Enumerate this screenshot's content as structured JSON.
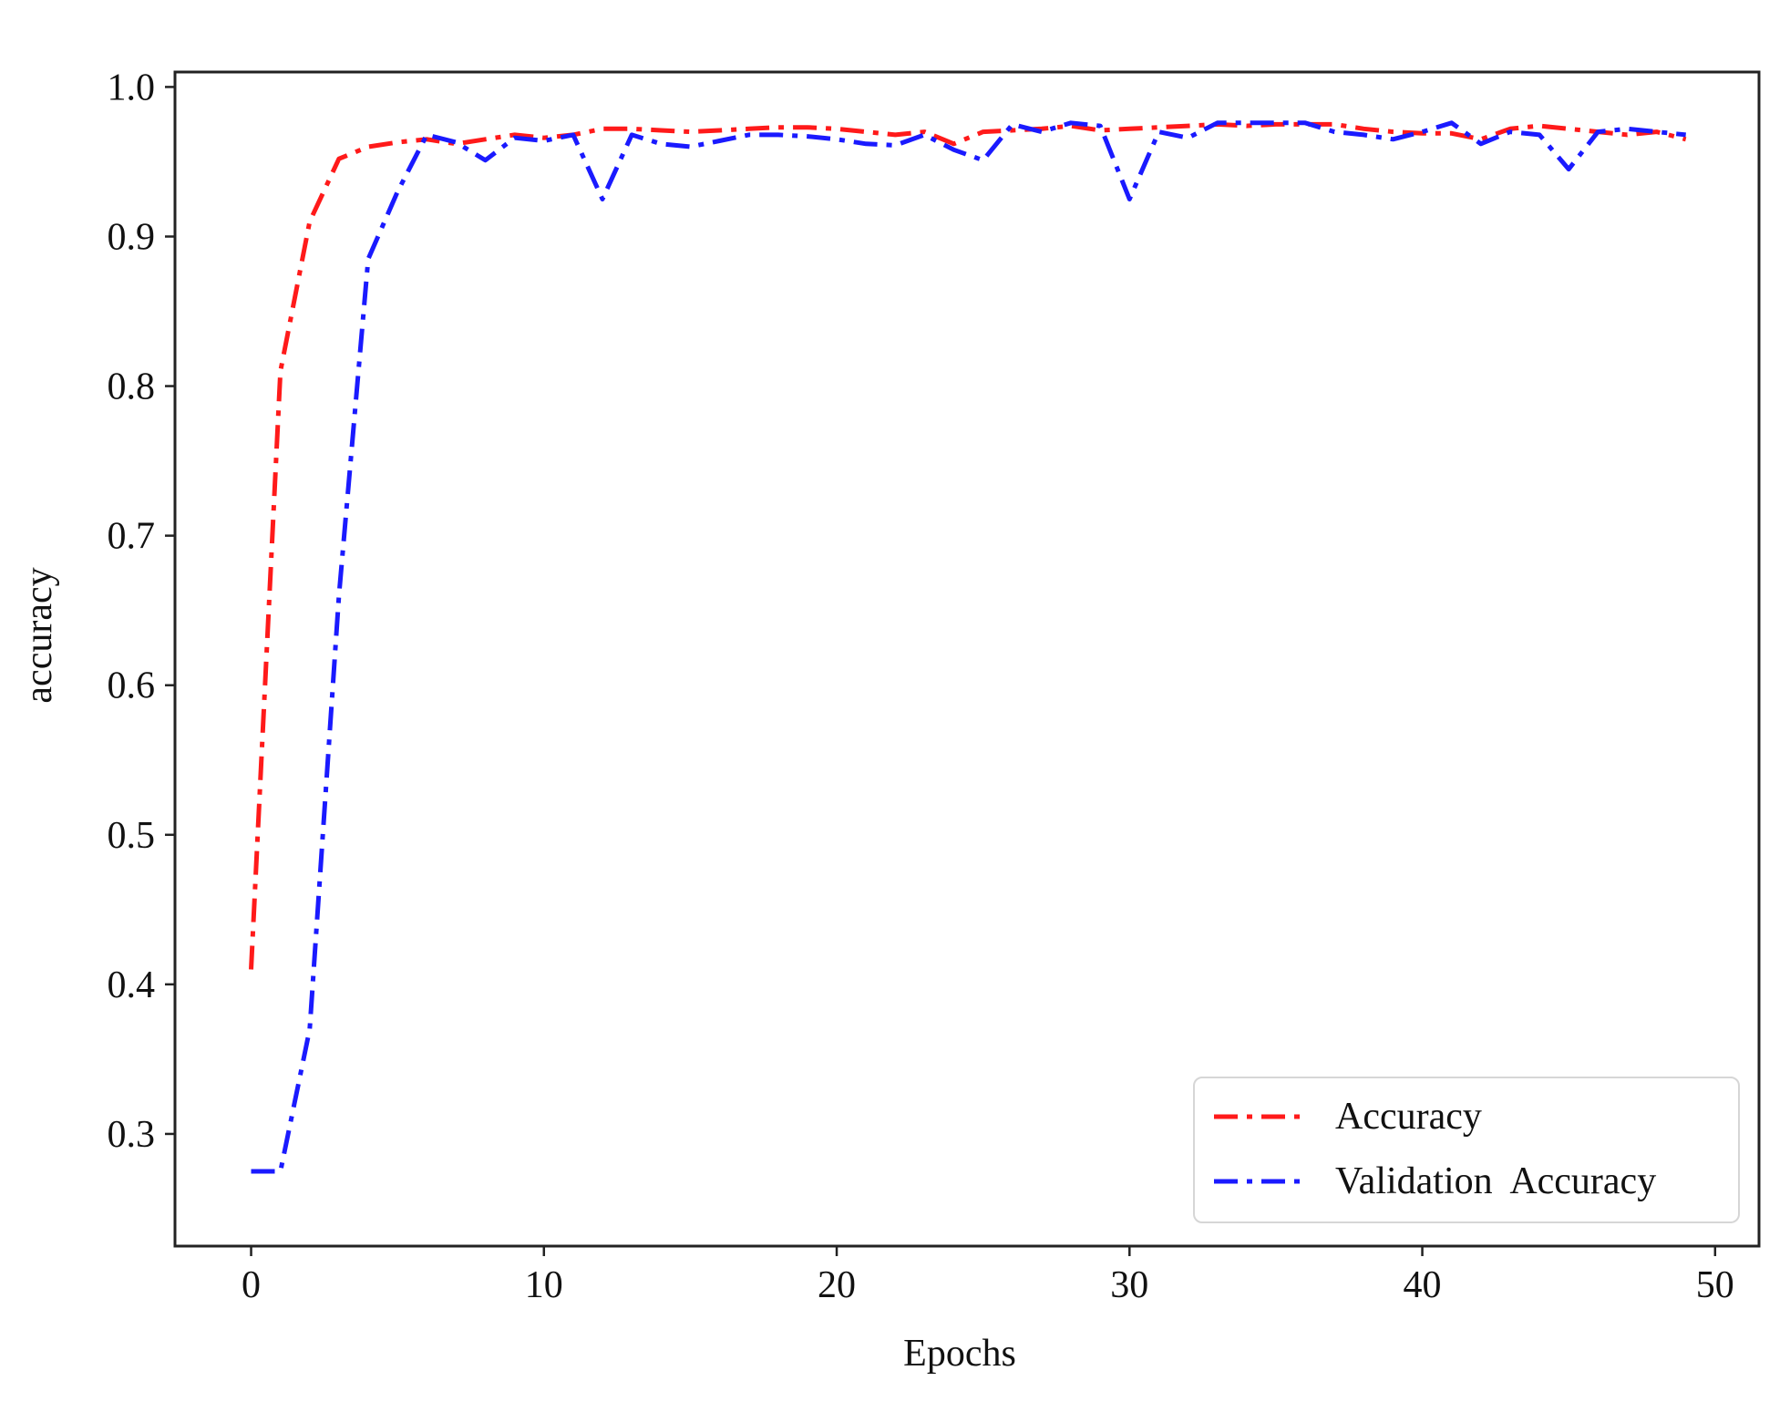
{
  "chart_data": {
    "type": "line",
    "xlabel": "Epochs",
    "ylabel": "accuracy",
    "xlim": [
      -2.6,
      51.5
    ],
    "ylim": [
      0.225,
      1.01
    ],
    "xticks": [
      0,
      10,
      20,
      30,
      40,
      50
    ],
    "yticks": [
      0.3,
      0.4,
      0.5,
      0.6,
      0.7,
      0.8,
      0.9,
      1.0
    ],
    "xtick_labels": [
      "0",
      "10",
      "20",
      "30",
      "40",
      "50"
    ],
    "ytick_labels": [
      "0.3",
      "0.4",
      "0.5",
      "0.6",
      "0.7",
      "0.8",
      "0.9",
      "1.0"
    ],
    "grid": false,
    "legend_position": "lower-right",
    "x": [
      0,
      1,
      2,
      3,
      4,
      5,
      6,
      7,
      8,
      9,
      10,
      11,
      12,
      13,
      14,
      15,
      16,
      17,
      18,
      19,
      20,
      21,
      22,
      23,
      24,
      25,
      26,
      27,
      28,
      29,
      30,
      31,
      32,
      33,
      34,
      35,
      36,
      37,
      38,
      39,
      40,
      41,
      42,
      43,
      44,
      45,
      46,
      47,
      48,
      49
    ],
    "series": [
      {
        "name": "Accuracy",
        "color": "#ff1a1a",
        "values": [
          0.41,
          0.81,
          0.91,
          0.952,
          0.96,
          0.963,
          0.965,
          0.962,
          0.965,
          0.968,
          0.966,
          0.968,
          0.972,
          0.972,
          0.971,
          0.97,
          0.971,
          0.972,
          0.973,
          0.973,
          0.972,
          0.97,
          0.968,
          0.97,
          0.962,
          0.97,
          0.971,
          0.972,
          0.974,
          0.971,
          0.972,
          0.973,
          0.974,
          0.975,
          0.974,
          0.975,
          0.975,
          0.975,
          0.972,
          0.97,
          0.969,
          0.969,
          0.965,
          0.972,
          0.974,
          0.972,
          0.97,
          0.968,
          0.97,
          0.965
        ]
      },
      {
        "name": "Validation  Accuracy",
        "color": "#1a1aff",
        "values": [
          0.275,
          0.275,
          0.37,
          0.66,
          0.885,
          0.93,
          0.968,
          0.963,
          0.951,
          0.966,
          0.964,
          0.968,
          0.925,
          0.968,
          0.962,
          0.96,
          0.964,
          0.968,
          0.968,
          0.967,
          0.965,
          0.962,
          0.961,
          0.968,
          0.958,
          0.951,
          0.975,
          0.97,
          0.976,
          0.974,
          0.925,
          0.97,
          0.966,
          0.976,
          0.976,
          0.976,
          0.976,
          0.97,
          0.968,
          0.965,
          0.97,
          0.976,
          0.962,
          0.97,
          0.968,
          0.945,
          0.97,
          0.972,
          0.97,
          0.968
        ]
      }
    ]
  }
}
